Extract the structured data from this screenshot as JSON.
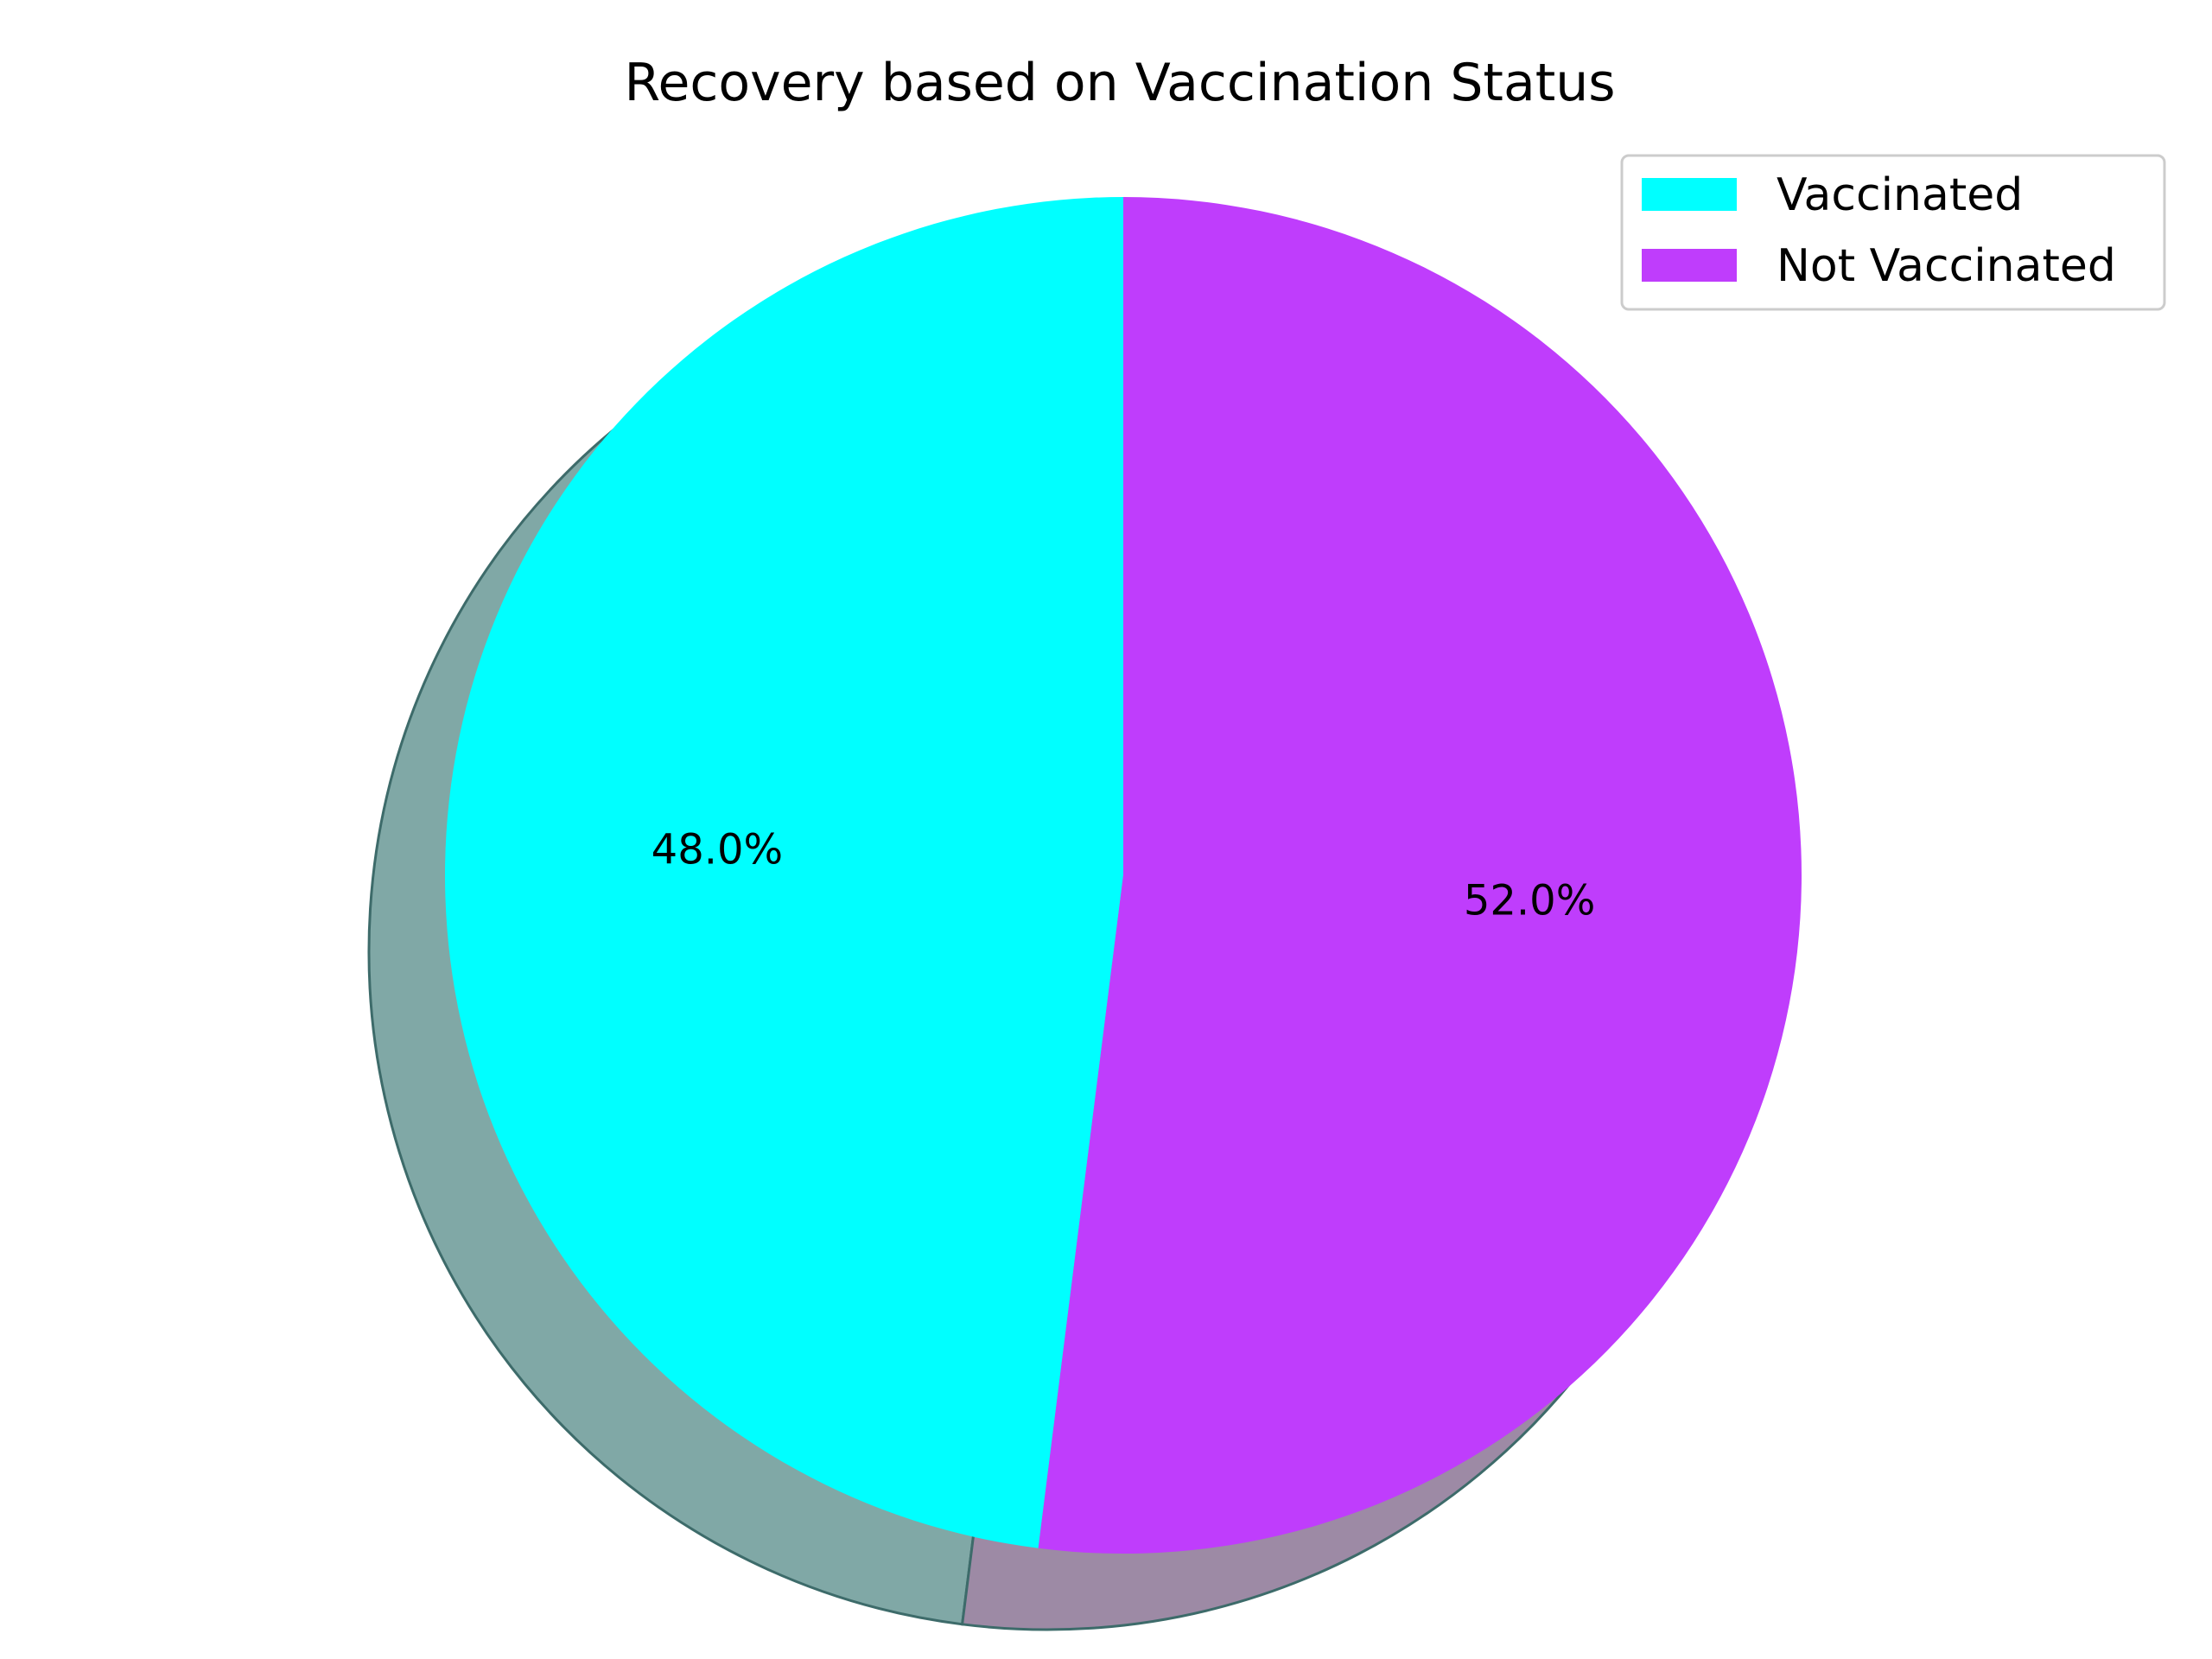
{
  "chart_data": {
    "type": "pie",
    "title": "Recovery based on Vaccination Status",
    "categories": [
      "Vaccinated",
      "Not Vaccinated"
    ],
    "values": [
      48.0,
      52.0
    ],
    "labels": [
      "48.0%",
      "52.0%"
    ],
    "colors": [
      "#00ffff",
      "#bf3dfc"
    ],
    "shadow_colors": [
      "#80a8a6",
      "#9d8aa5"
    ],
    "start_angle_deg": 90,
    "direction": "counterclockwise",
    "shadow": true,
    "legend": {
      "placement": "top-right",
      "entries": [
        "Vaccinated",
        "Not Vaccinated"
      ]
    }
  }
}
